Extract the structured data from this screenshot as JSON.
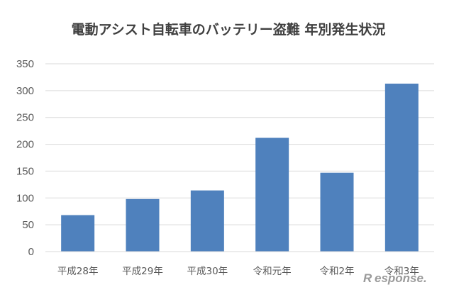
{
  "chart_data": {
    "type": "bar",
    "title": "電動アシスト自転車のバッテリー盗難 年別発生状況",
    "categories": [
      "平成28年",
      "平成29年",
      "平成30年",
      "令和元年",
      "令和2年",
      "令和3年"
    ],
    "values": [
      68,
      98,
      114,
      212,
      147,
      313
    ],
    "ylim": [
      0,
      350
    ],
    "yticks": [
      0,
      50,
      100,
      150,
      200,
      250,
      300,
      350
    ],
    "grid": true,
    "bar_color": "#4f81bd",
    "grid_color": "#d9d9d9"
  },
  "watermark": {
    "mark": "R",
    "text": "esponse."
  }
}
